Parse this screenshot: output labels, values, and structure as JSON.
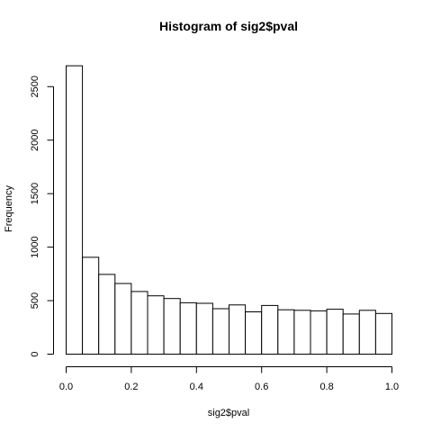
{
  "chart_data": {
    "type": "bar",
    "title": "Histogram of sig2$pval",
    "xlabel": "sig2$pval",
    "ylabel": "Frequency",
    "xlim": [
      0,
      1
    ],
    "ylim": [
      0,
      2700
    ],
    "bin_edges": [
      0.0,
      0.05,
      0.1,
      0.15,
      0.2,
      0.25,
      0.3,
      0.35,
      0.4,
      0.45,
      0.5,
      0.55,
      0.6,
      0.65,
      0.7,
      0.75,
      0.8,
      0.85,
      0.9,
      0.95,
      1.0
    ],
    "values": [
      2695,
      905,
      745,
      660,
      585,
      545,
      520,
      480,
      475,
      425,
      460,
      395,
      455,
      415,
      410,
      405,
      420,
      375,
      410,
      380
    ],
    "x_ticks": [
      0.0,
      0.2,
      0.4,
      0.6,
      0.8,
      1.0
    ],
    "x_tick_labels": [
      "0.0",
      "0.2",
      "0.4",
      "0.6",
      "0.8",
      "1.0"
    ],
    "y_ticks": [
      0,
      500,
      1000,
      1500,
      2000,
      2500
    ],
    "y_tick_labels": [
      "0",
      "500",
      "1000",
      "1500",
      "2000",
      "2500"
    ],
    "grid": false,
    "legend": "none",
    "bar_fill": "#ffffff",
    "bar_stroke": "#000000"
  }
}
